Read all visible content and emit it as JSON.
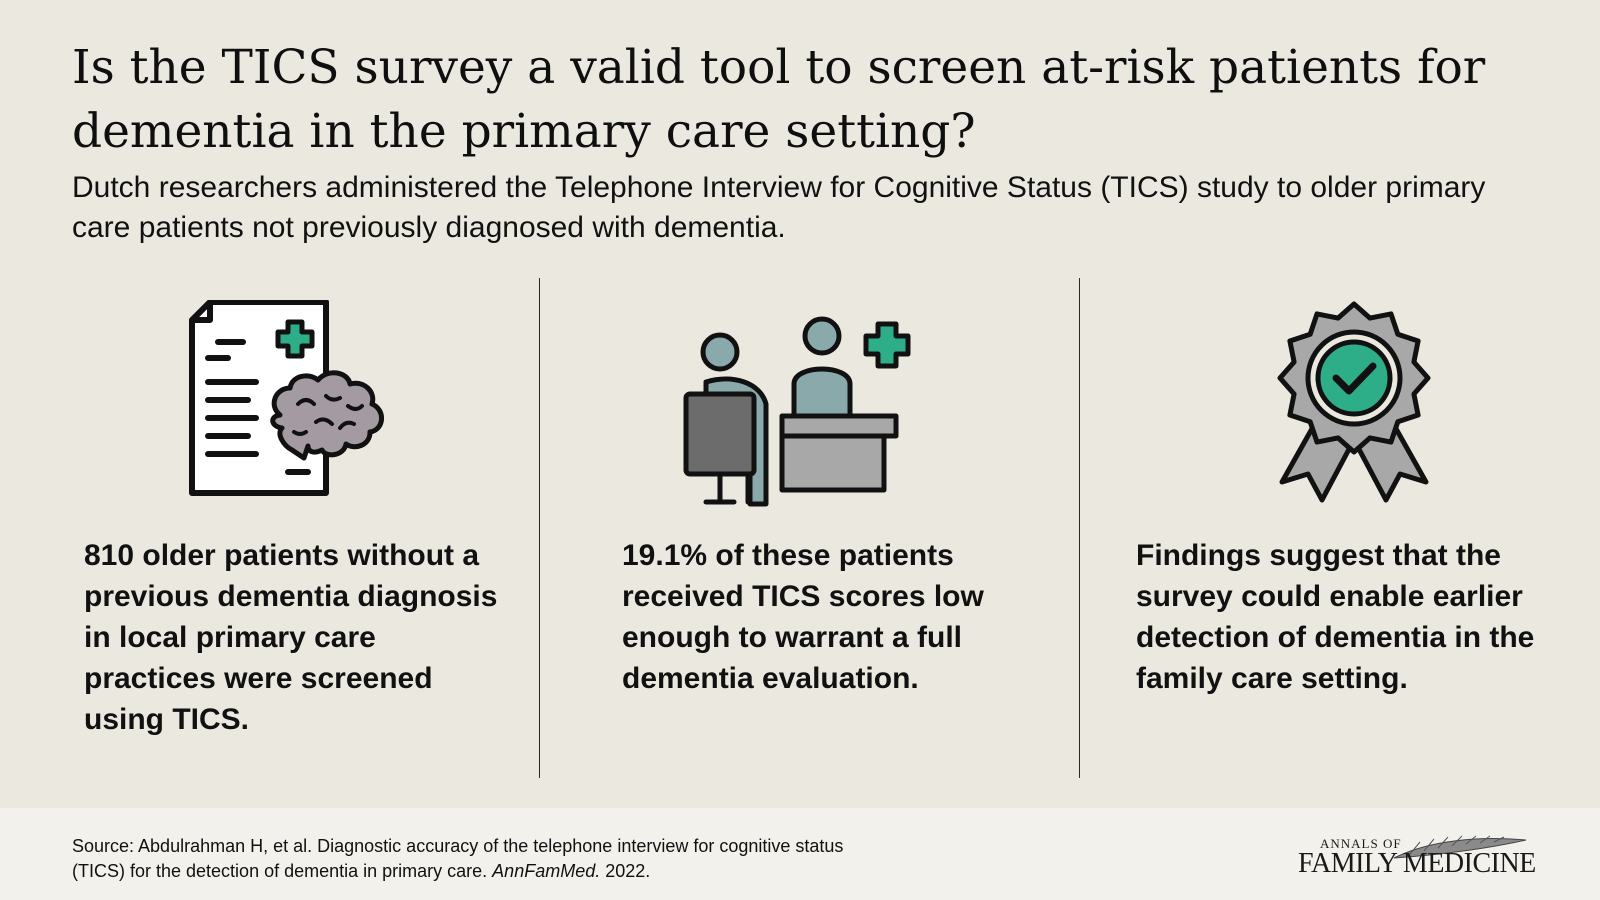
{
  "header": {
    "title": "Is the TICS survey a valid tool to screen at-risk patients for dementia in the primary care setting?",
    "subtitle": "Dutch researchers administered the Telephone Interview for Cognitive Status (TICS) study to older primary care patients not previously diagnosed with dementia."
  },
  "panels": [
    {
      "icon": "medical-document-brain-icon",
      "text": "810 older patients without a previous dementia diagnosis in local primary care practices were screened using TICS."
    },
    {
      "icon": "doctor-consultation-icon",
      "text": "19.1% of these patients received TICS scores low enough to warrant a full dementia evaluation."
    },
    {
      "icon": "award-badge-check-icon",
      "text": "Findings suggest that the survey could enable earlier detection of dementia in the family care setting."
    }
  ],
  "footer": {
    "source_main": "Source:  Abdulrahman H, et al. Diagnostic accuracy of the telephone interview for cognitive status (TICS) for the detection of dementia in primary care. ",
    "source_journal": "AnnFamMed.",
    "source_year": " 2022.",
    "logo_top": "ANNALS OF",
    "logo_main": "FAMILY MEDICINE"
  },
  "colors": {
    "background": "#ebe9df",
    "footer_background": "#f2f1ec",
    "accent_green": "#2eae88",
    "brain_mauve": "#a49aa2",
    "person_teal": "#8aa9ab",
    "desk_gray": "#a8a8a8",
    "chair_gray": "#6c6c6c",
    "outline": "#111111"
  }
}
